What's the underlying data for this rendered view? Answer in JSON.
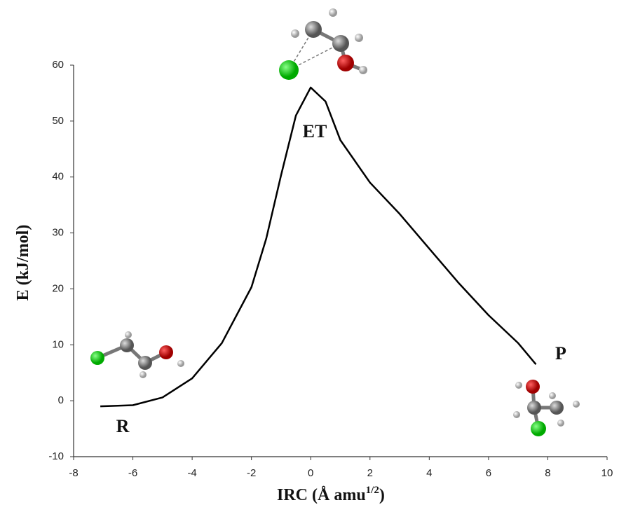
{
  "chart_data": {
    "type": "line",
    "x_label": "IRC (Å amu",
    "x_label_sup": "1/2",
    "x_label_end": ")",
    "y_label": "E (kJ/mol)",
    "annotations": [
      "R",
      "ET",
      "P"
    ],
    "series": [
      {
        "color": "#000000",
        "x": [
          -7.1,
          -6,
          -5,
          -4,
          -3,
          -2,
          -1.5,
          -1,
          -0.5,
          0,
          0.5,
          1,
          2,
          3,
          4,
          5,
          6,
          7,
          7.6
        ],
        "values": [
          -1.0,
          -0.8,
          0.6,
          4,
          10.3,
          20.3,
          29,
          40.3,
          51,
          56,
          53.5,
          46.6,
          39,
          33.4,
          27.2,
          21,
          15.3,
          10.3,
          6.5
        ]
      }
    ],
    "xlim": [
      -8,
      10
    ],
    "xticks": [
      -8,
      -6,
      -4,
      -2,
      0,
      2,
      4,
      6,
      8,
      10
    ],
    "ylim": [
      -10,
      60
    ],
    "yticks": [
      -10,
      0,
      10,
      20,
      30,
      40,
      50,
      60
    ]
  }
}
